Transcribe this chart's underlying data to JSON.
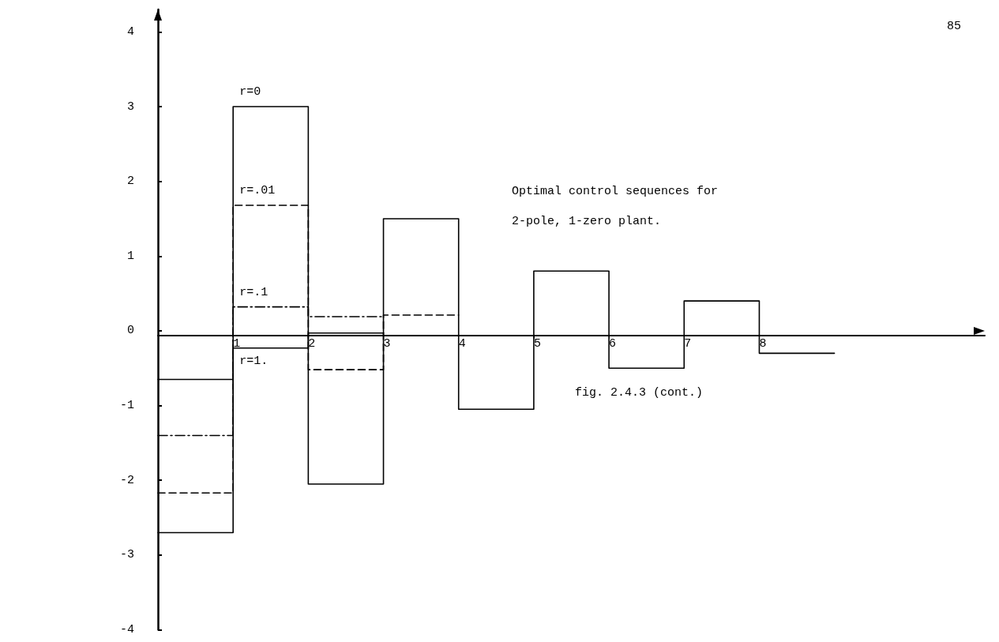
{
  "chart_data": {
    "type": "step",
    "annotations": [
      "85",
      "Optimal control sequences for\n2-pole, 1-zero plant.",
      "fig. 2.4.3 (cont.)"
    ],
    "series": [
      {
        "name": "r=0",
        "color": "#000000",
        "line_style": "solid",
        "x": [
          0,
          1,
          2,
          3,
          4,
          5,
          6,
          7,
          8,
          9
        ],
        "values": [
          -2.7,
          3.0,
          -2.05,
          1.5,
          -1.05,
          0.8,
          -0.5,
          0.4,
          -0.3,
          -0.3
        ]
      },
      {
        "name": "r=.01",
        "color": "#000000",
        "line_style": "dashed",
        "x": [
          0,
          1,
          2,
          3,
          4
        ],
        "values": [
          -2.17,
          1.68,
          -0.52,
          0.21,
          0.21
        ]
      },
      {
        "name": "r=.1",
        "color": "#000000",
        "line_style": "dotted",
        "x": [
          0,
          1,
          2,
          3
        ],
        "values": [
          -1.4,
          0.32,
          0.19,
          0.19
        ]
      },
      {
        "name": "r=1.",
        "color": "#000000",
        "line_style": "solid",
        "x": [
          0,
          1,
          2,
          3
        ],
        "values": [
          -0.65,
          -0.23,
          -0.03,
          -0.03
        ]
      }
    ],
    "xlim": [
      0,
      11
    ],
    "xticks": [
      1,
      2,
      3,
      4,
      5,
      6,
      7,
      8
    ],
    "ylim": [
      -4,
      4.3
    ],
    "yticks": [
      -4,
      -3,
      -2,
      -1,
      0,
      1,
      2,
      3,
      4
    ],
    "grid": false,
    "legend": false,
    "marker": "none"
  }
}
